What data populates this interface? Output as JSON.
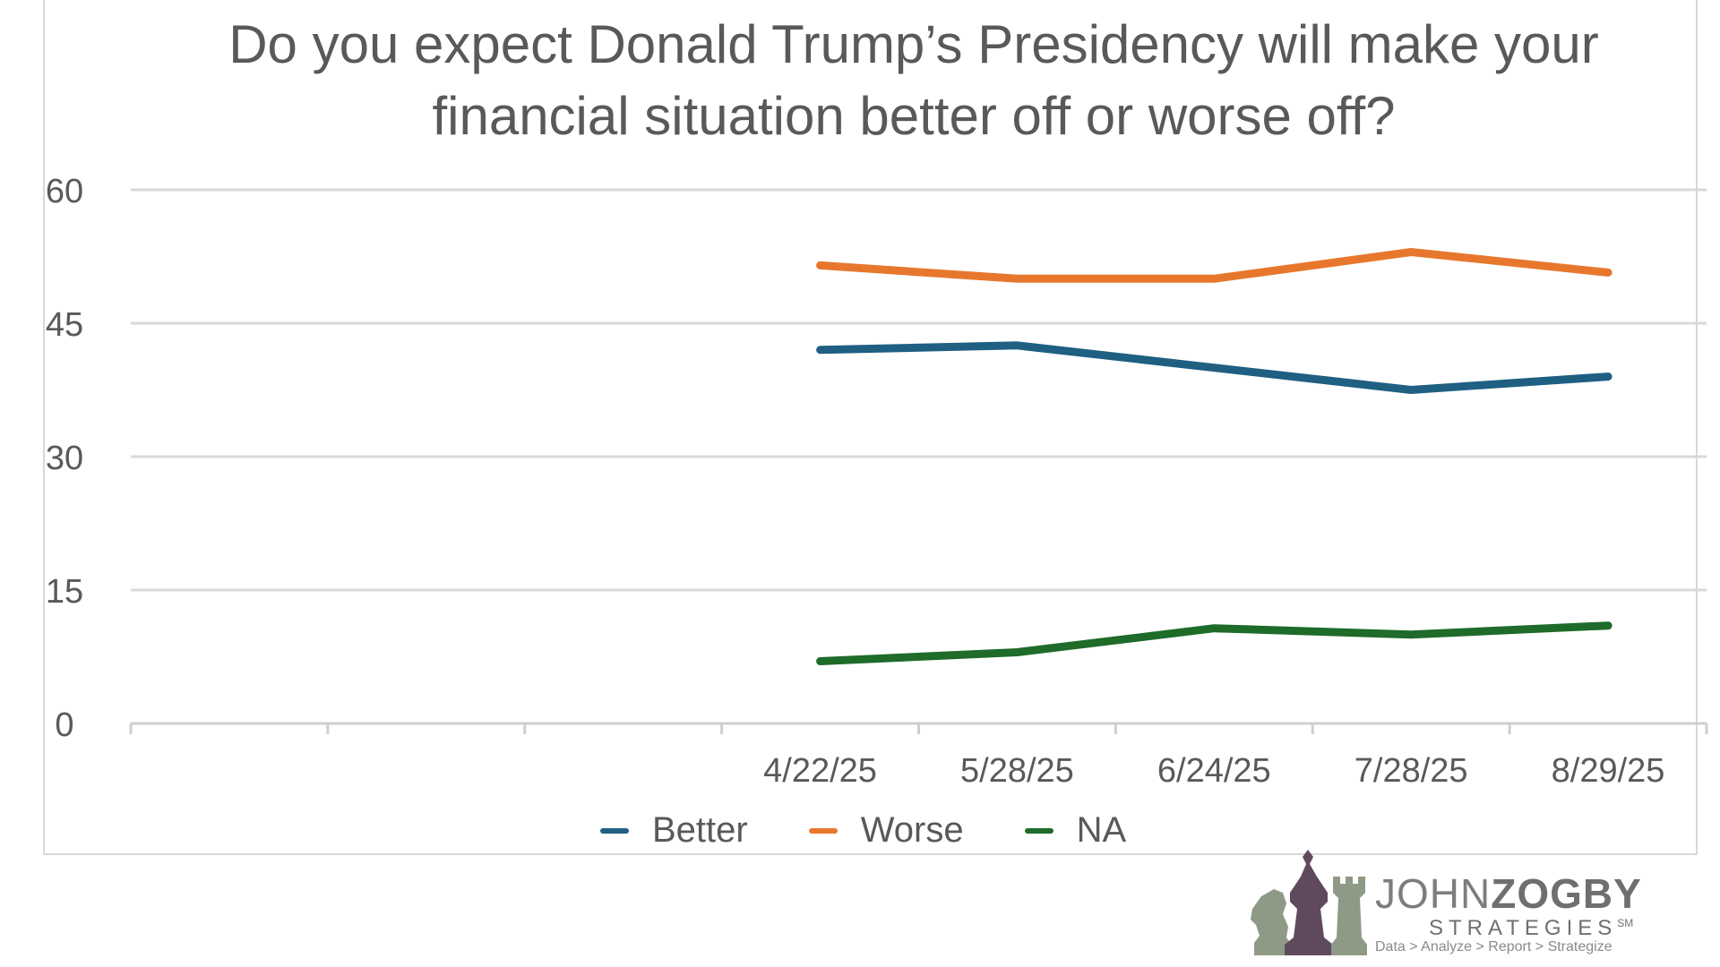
{
  "chart_data": {
    "type": "line",
    "title": "Do you expect Donald Trump’s Presidency will make your financial situation better off or worse off?",
    "xlabel": "",
    "ylabel": "",
    "categories": [
      "",
      "",
      "",
      "4/22/25",
      "5/28/25",
      "6/24/25",
      "7/28/25",
      "8/29/25"
    ],
    "ylim": [
      0,
      60
    ],
    "yticks": [
      "0",
      "15",
      "30",
      "45",
      "60"
    ],
    "grid": true,
    "legend_position": "bottom",
    "series": [
      {
        "name": "Better",
        "color": "#1f5f82",
        "values": [
          null,
          null,
          null,
          42,
          42.5,
          40,
          37.5,
          39
        ]
      },
      {
        "name": "Worse",
        "color": "#e8772e",
        "values": [
          null,
          null,
          null,
          51.5,
          50,
          50,
          53,
          50.7
        ]
      },
      {
        "name": "NA",
        "color": "#1e6b2a",
        "values": [
          null,
          null,
          null,
          7,
          8,
          10.7,
          10,
          11
        ]
      }
    ]
  },
  "logo": {
    "name_first": "JOHN",
    "name_last": "ZOGBY",
    "subtitle": "STRATEGIES",
    "mark": "SM",
    "tagline": "Data > Analyze > Report > Strategize",
    "piece_colors": [
      "#8e9a86",
      "#5e4a5c",
      "#8e9a86"
    ]
  }
}
